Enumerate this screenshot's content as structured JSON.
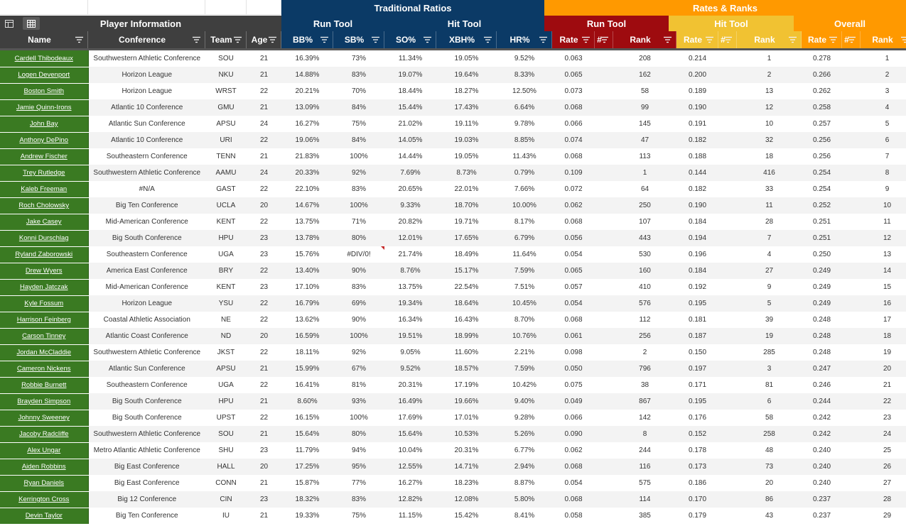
{
  "groups": {
    "trad": "Traditional Ratios",
    "rates": "Rates & Ranks",
    "player_info": "Player Information",
    "run_tool": "Run Tool",
    "hit_tool": "Hit Tool",
    "rr_run_tool": "Run Tool",
    "rr_hit_tool": "Hit Tool",
    "overall": "Overall"
  },
  "columns": [
    "Name",
    "Conference",
    "Team",
    "Age",
    "BB%",
    "SB%",
    "SO%",
    "XBH%",
    "HR%",
    "Rate",
    "#",
    "Rank",
    "Rate",
    "#",
    "Rank",
    "Rate",
    "#",
    "Rank"
  ],
  "colors": {
    "dark": "#3f3f3f",
    "navy": "#0b3a66",
    "red": "#9e0b0f",
    "gold": "#f1c232",
    "orange": "#ff9900",
    "green": "#3a7a22"
  },
  "rows": [
    [
      "Cardell Thibodeaux",
      "Southwestern Athletic Conference",
      "SOU",
      "21",
      "16.39%",
      "73%",
      "11.34%",
      "19.05%",
      "9.52%",
      "0.063",
      "",
      "208",
      "0.214",
      "",
      "1",
      "0.278",
      "",
      "1"
    ],
    [
      "Logen Devenport",
      "Horizon League",
      "NKU",
      "21",
      "14.88%",
      "83%",
      "19.07%",
      "19.64%",
      "8.33%",
      "0.065",
      "",
      "162",
      "0.200",
      "",
      "2",
      "0.266",
      "",
      "2"
    ],
    [
      "Boston Smith",
      "Horizon League",
      "WRST",
      "22",
      "20.21%",
      "70%",
      "18.44%",
      "18.27%",
      "12.50%",
      "0.073",
      "",
      "58",
      "0.189",
      "",
      "13",
      "0.262",
      "",
      "3"
    ],
    [
      "Jamie Quinn-Irons",
      "Atlantic 10 Conference",
      "GMU",
      "21",
      "13.09%",
      "84%",
      "15.44%",
      "17.43%",
      "6.64%",
      "0.068",
      "",
      "99",
      "0.190",
      "",
      "12",
      "0.258",
      "",
      "4"
    ],
    [
      "John Bay",
      "Atlantic Sun Conference",
      "APSU",
      "24",
      "16.27%",
      "75%",
      "21.02%",
      "19.11%",
      "9.78%",
      "0.066",
      "",
      "145",
      "0.191",
      "",
      "10",
      "0.257",
      "",
      "5"
    ],
    [
      "Anthony DePino",
      "Atlantic 10 Conference",
      "URI",
      "22",
      "19.06%",
      "84%",
      "14.05%",
      "19.03%",
      "8.85%",
      "0.074",
      "",
      "47",
      "0.182",
      "",
      "32",
      "0.256",
      "",
      "6"
    ],
    [
      "Andrew Fischer",
      "Southeastern Conference",
      "TENN",
      "21",
      "21.83%",
      "100%",
      "14.44%",
      "19.05%",
      "11.43%",
      "0.068",
      "",
      "113",
      "0.188",
      "",
      "18",
      "0.256",
      "",
      "7"
    ],
    [
      "Trey Rutledge",
      "Southwestern Athletic Conference",
      "AAMU",
      "24",
      "20.33%",
      "92%",
      "7.69%",
      "8.73%",
      "0.79%",
      "0.109",
      "",
      "1",
      "0.144",
      "",
      "416",
      "0.254",
      "",
      "8"
    ],
    [
      "Kaleb Freeman",
      "#N/A",
      "GAST",
      "22",
      "22.10%",
      "83%",
      "20.65%",
      "22.01%",
      "7.66%",
      "0.072",
      "",
      "64",
      "0.182",
      "",
      "33",
      "0.254",
      "",
      "9"
    ],
    [
      "Roch Cholowsky",
      "Big Ten Conference",
      "UCLA",
      "20",
      "14.67%",
      "100%",
      "9.33%",
      "18.70%",
      "10.00%",
      "0.062",
      "",
      "250",
      "0.190",
      "",
      "11",
      "0.252",
      "",
      "10"
    ],
    [
      "Jake Casey",
      "Mid-American Conference",
      "KENT",
      "22",
      "13.75%",
      "71%",
      "20.82%",
      "19.71%",
      "8.17%",
      "0.068",
      "",
      "107",
      "0.184",
      "",
      "28",
      "0.251",
      "",
      "11"
    ],
    [
      "Konni Durschlag",
      "Big South Conference",
      "HPU",
      "23",
      "13.78%",
      "80%",
      "12.01%",
      "17.65%",
      "6.79%",
      "0.056",
      "",
      "443",
      "0.194",
      "",
      "7",
      "0.251",
      "",
      "12"
    ],
    [
      "Ryland Zaborowski",
      "Southeastern Conference",
      "UGA",
      "23",
      "15.76%",
      "#DIV/0!",
      "21.74%",
      "18.49%",
      "11.64%",
      "0.054",
      "",
      "530",
      "0.196",
      "",
      "4",
      "0.250",
      "",
      "13"
    ],
    [
      "Drew Wyers",
      "America East Conference",
      "BRY",
      "22",
      "13.40%",
      "90%",
      "8.76%",
      "15.17%",
      "7.59%",
      "0.065",
      "",
      "160",
      "0.184",
      "",
      "27",
      "0.249",
      "",
      "14"
    ],
    [
      "Hayden Jatczak",
      "Mid-American Conference",
      "KENT",
      "23",
      "17.10%",
      "83%",
      "13.75%",
      "22.54%",
      "7.51%",
      "0.057",
      "",
      "410",
      "0.192",
      "",
      "9",
      "0.249",
      "",
      "15"
    ],
    [
      "Kyle Fossum",
      "Horizon League",
      "YSU",
      "22",
      "16.79%",
      "69%",
      "19.34%",
      "18.64%",
      "10.45%",
      "0.054",
      "",
      "576",
      "0.195",
      "",
      "5",
      "0.249",
      "",
      "16"
    ],
    [
      "Harrison Feinberg",
      "Coastal Athletic Association",
      "NE",
      "22",
      "13.62%",
      "90%",
      "16.34%",
      "16.43%",
      "8.70%",
      "0.068",
      "",
      "112",
      "0.181",
      "",
      "39",
      "0.248",
      "",
      "17"
    ],
    [
      "Carson Tinney",
      "Atlantic Coast Conference",
      "ND",
      "20",
      "16.59%",
      "100%",
      "19.51%",
      "18.99%",
      "10.76%",
      "0.061",
      "",
      "256",
      "0.187",
      "",
      "19",
      "0.248",
      "",
      "18"
    ],
    [
      "Jordan McCladdie",
      "Southwestern Athletic Conference",
      "JKST",
      "22",
      "18.11%",
      "92%",
      "9.05%",
      "11.60%",
      "2.21%",
      "0.098",
      "",
      "2",
      "0.150",
      "",
      "285",
      "0.248",
      "",
      "19"
    ],
    [
      "Cameron Nickens",
      "Atlantic Sun Conference",
      "APSU",
      "21",
      "15.99%",
      "67%",
      "9.52%",
      "18.57%",
      "7.59%",
      "0.050",
      "",
      "796",
      "0.197",
      "",
      "3",
      "0.247",
      "",
      "20"
    ],
    [
      "Robbie Burnett",
      "Southeastern Conference",
      "UGA",
      "22",
      "16.41%",
      "81%",
      "20.31%",
      "17.19%",
      "10.42%",
      "0.075",
      "",
      "38",
      "0.171",
      "",
      "81",
      "0.246",
      "",
      "21"
    ],
    [
      "Brayden Simpson",
      "Big South Conference",
      "HPU",
      "21",
      "8.60%",
      "93%",
      "16.49%",
      "19.66%",
      "9.40%",
      "0.049",
      "",
      "867",
      "0.195",
      "",
      "6",
      "0.244",
      "",
      "22"
    ],
    [
      "Johnny Sweeney",
      "Big South Conference",
      "UPST",
      "22",
      "16.15%",
      "100%",
      "17.69%",
      "17.01%",
      "9.28%",
      "0.066",
      "",
      "142",
      "0.176",
      "",
      "58",
      "0.242",
      "",
      "23"
    ],
    [
      "Jacoby Radcliffe",
      "Southwestern Athletic Conference",
      "SOU",
      "21",
      "15.64%",
      "80%",
      "15.64%",
      "10.53%",
      "5.26%",
      "0.090",
      "",
      "8",
      "0.152",
      "",
      "258",
      "0.242",
      "",
      "24"
    ],
    [
      "Alex Ungar",
      "Metro Atlantic Athletic Conference",
      "SHU",
      "23",
      "11.79%",
      "94%",
      "10.04%",
      "20.31%",
      "6.77%",
      "0.062",
      "",
      "244",
      "0.178",
      "",
      "48",
      "0.240",
      "",
      "25"
    ],
    [
      "Aiden Robbins",
      "Big East Conference",
      "HALL",
      "20",
      "17.25%",
      "95%",
      "12.55%",
      "14.71%",
      "2.94%",
      "0.068",
      "",
      "116",
      "0.173",
      "",
      "73",
      "0.240",
      "",
      "26"
    ],
    [
      "Ryan Daniels",
      "Big East Conference",
      "CONN",
      "21",
      "15.87%",
      "77%",
      "16.27%",
      "18.23%",
      "8.87%",
      "0.054",
      "",
      "575",
      "0.186",
      "",
      "20",
      "0.240",
      "",
      "27"
    ],
    [
      "Kerrington Cross",
      "Big 12 Conference",
      "CIN",
      "23",
      "18.32%",
      "83%",
      "12.82%",
      "12.08%",
      "5.80%",
      "0.068",
      "",
      "114",
      "0.170",
      "",
      "86",
      "0.237",
      "",
      "28"
    ],
    [
      "Devin Taylor",
      "Big Ten Conference",
      "IU",
      "21",
      "19.33%",
      "75%",
      "11.15%",
      "15.42%",
      "8.41%",
      "0.058",
      "",
      "385",
      "0.179",
      "",
      "43",
      "0.237",
      "",
      "29"
    ]
  ]
}
